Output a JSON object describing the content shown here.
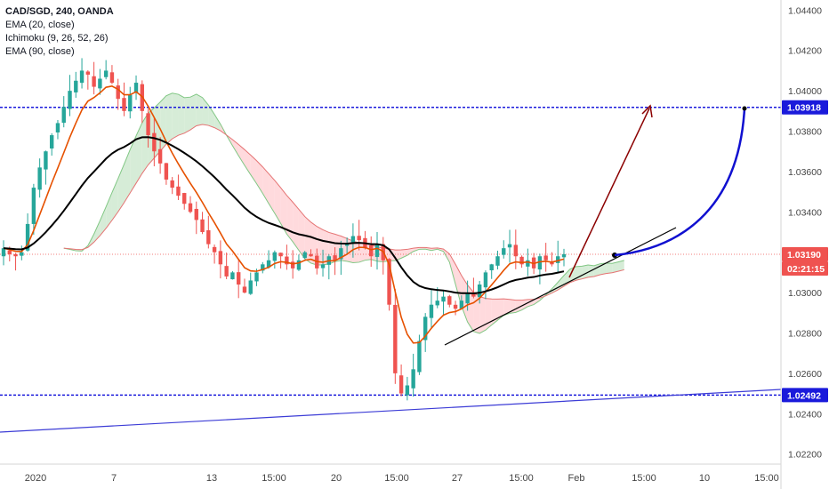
{
  "legend": {
    "symbol": "CAD/SGD, 240, OANDA",
    "indicators": [
      "EMA (20, close)",
      "Ichimoku (9, 26, 52, 26)",
      "EMA (90, close)"
    ]
  },
  "price_axis": {
    "current_price": "1.03190",
    "countdown": "02:21:15",
    "resistance_label": "1.03918",
    "support_label": "1.02492"
  },
  "colors": {
    "up": "#26a69a",
    "down": "#ef5350",
    "ema20": "#e65100",
    "ema90": "#000000",
    "cloud_bull": "#c8e6c9",
    "cloud_bear": "#ffcdd2",
    "level_line": "#1a1adb",
    "trend_line_support": "#3c3cd6",
    "arrow_red": "#8b0000",
    "arrow_blue": "#1010d0"
  },
  "chart_data": {
    "type": "line",
    "title": "CAD/SGD, 240, OANDA",
    "ylim": [
      1.0215,
      1.0445
    ],
    "y_ticks": [
      "1.04400",
      "1.04200",
      "1.04000",
      "1.03800",
      "1.03600",
      "1.03400",
      "1.03200",
      "1.03000",
      "1.02800",
      "1.02600",
      "1.02400",
      "1.02200"
    ],
    "x_ticks": [
      "2020",
      "7",
      "13",
      "15:00",
      "20",
      "15:00",
      "27",
      "15:00",
      "Feb",
      "15:00",
      "10",
      "15:00"
    ],
    "levels": [
      1.03918,
      1.02492
    ],
    "series": [
      {
        "values": [
          1.0322,
          1.0319,
          1.0318,
          1.032,
          1.0334,
          1.0352,
          1.0362,
          1.037,
          1.0378,
          1.0384,
          1.0392,
          1.04,
          1.0405,
          1.041,
          1.0408,
          1.0402,
          1.0406,
          1.041,
          1.0404,
          1.0396,
          1.039,
          1.0398,
          1.0404,
          1.039,
          1.0378,
          1.037,
          1.0364,
          1.0356,
          1.0352,
          1.0348,
          1.0344,
          1.034,
          1.0336,
          1.033,
          1.0324,
          1.032,
          1.0314,
          1.0308,
          1.031,
          1.0304,
          1.03,
          1.0306,
          1.031,
          1.0314,
          1.0316,
          1.032,
          1.0318,
          1.0314,
          1.0312,
          1.0316,
          1.032,
          1.0318,
          1.0312,
          1.0314,
          1.0318,
          1.0316,
          1.0322,
          1.0324,
          1.0328,
          1.0326,
          1.0322,
          1.0318,
          1.0324,
          1.0316,
          1.0294,
          1.026,
          1.025,
          1.0254,
          1.0262,
          1.0276,
          1.0288,
          1.0294,
          1.0296,
          1.0298,
          1.0294,
          1.0292,
          1.0296,
          1.03,
          1.0298,
          1.0304,
          1.031,
          1.0314,
          1.0318,
          1.0322,
          1.0324,
          1.0318,
          1.0314,
          1.0316,
          1.0312,
          1.0318,
          1.0316,
          1.0314,
          1.0318,
          1.0319
        ]
      }
    ]
  }
}
